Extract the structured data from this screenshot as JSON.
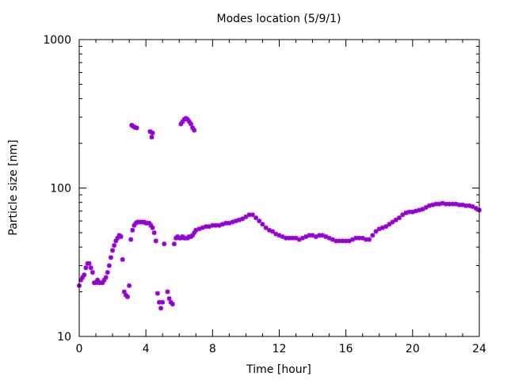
{
  "chart_data": {
    "type": "scatter",
    "title": "Modes location (5/9/1)",
    "xlabel": "Time [hour]",
    "ylabel": "Particle size [nm]",
    "x_scale": "linear",
    "y_scale": "log",
    "xlim": [
      0,
      24
    ],
    "ylim": [
      10,
      1000
    ],
    "x_ticks": [
      0,
      4,
      8,
      12,
      16,
      20,
      24
    ],
    "x_tick_labels": [
      "0",
      "4",
      "8",
      "12",
      "16",
      "20",
      "24"
    ],
    "y_ticks": [
      10,
      100,
      1000
    ],
    "y_tick_labels": [
      "10",
      "100",
      "1000"
    ],
    "grid": false,
    "legend": false,
    "marker_color": "#9400d3",
    "series": [
      {
        "points": [
          [
            0.0,
            22
          ],
          [
            0.1,
            24
          ],
          [
            0.2,
            25
          ],
          [
            0.3,
            26
          ],
          [
            0.4,
            29
          ],
          [
            0.5,
            31
          ],
          [
            0.6,
            31
          ],
          [
            0.7,
            29
          ],
          [
            0.8,
            27
          ],
          [
            0.9,
            23
          ],
          [
            1.0,
            23
          ],
          [
            1.1,
            24
          ],
          [
            1.2,
            23
          ],
          [
            1.3,
            23
          ],
          [
            1.4,
            23
          ],
          [
            1.5,
            24
          ],
          [
            1.6,
            25
          ],
          [
            1.7,
            27
          ],
          [
            1.8,
            30
          ],
          [
            1.9,
            34
          ],
          [
            2.0,
            38
          ],
          [
            2.1,
            41
          ],
          [
            2.2,
            44
          ],
          [
            2.3,
            46
          ],
          [
            2.4,
            48
          ],
          [
            2.5,
            47
          ],
          [
            2.6,
            33
          ],
          [
            2.7,
            20
          ],
          [
            2.8,
            19
          ],
          [
            2.9,
            18.5
          ],
          [
            3.0,
            22
          ],
          [
            3.1,
            45
          ],
          [
            3.2,
            52
          ],
          [
            3.3,
            56
          ],
          [
            3.4,
            58
          ],
          [
            3.5,
            59
          ],
          [
            3.6,
            59
          ],
          [
            3.7,
            59
          ],
          [
            3.8,
            59
          ],
          [
            3.9,
            59
          ],
          [
            4.0,
            58
          ],
          [
            4.1,
            58
          ],
          [
            4.2,
            58
          ],
          [
            4.3,
            56
          ],
          [
            4.4,
            54
          ],
          [
            4.5,
            50
          ],
          [
            4.6,
            44
          ],
          [
            4.7,
            19.5
          ],
          [
            4.8,
            17
          ],
          [
            4.9,
            15.5
          ],
          [
            5.0,
            17
          ],
          [
            5.1,
            42
          ],
          [
            5.3,
            20
          ],
          [
            5.4,
            18
          ],
          [
            5.5,
            17
          ],
          [
            5.6,
            16.5
          ],
          [
            5.7,
            42
          ],
          [
            5.8,
            46
          ],
          [
            5.9,
            47
          ],
          [
            6.0,
            46
          ],
          [
            6.1,
            46
          ],
          [
            6.2,
            47
          ],
          [
            6.3,
            46
          ],
          [
            6.4,
            46
          ],
          [
            6.5,
            46
          ],
          [
            6.6,
            47
          ],
          [
            6.7,
            47
          ],
          [
            6.8,
            48
          ],
          [
            6.9,
            50
          ],
          [
            7.0,
            52
          ],
          [
            7.2,
            53
          ],
          [
            7.4,
            54
          ],
          [
            7.6,
            55
          ],
          [
            7.8,
            55
          ],
          [
            8.0,
            56
          ],
          [
            8.2,
            56
          ],
          [
            8.4,
            56
          ],
          [
            8.6,
            57
          ],
          [
            8.8,
            58
          ],
          [
            9.0,
            58
          ],
          [
            9.2,
            59
          ],
          [
            9.4,
            60
          ],
          [
            9.6,
            61
          ],
          [
            9.8,
            62
          ],
          [
            10.0,
            64
          ],
          [
            10.2,
            66
          ],
          [
            10.4,
            66
          ],
          [
            10.6,
            63
          ],
          [
            10.8,
            60
          ],
          [
            11.0,
            57
          ],
          [
            11.2,
            54
          ],
          [
            11.4,
            52
          ],
          [
            11.6,
            51
          ],
          [
            11.8,
            49
          ],
          [
            12.0,
            48
          ],
          [
            12.2,
            47
          ],
          [
            12.4,
            46
          ],
          [
            12.6,
            46
          ],
          [
            12.8,
            46
          ],
          [
            13.0,
            46
          ],
          [
            13.2,
            45
          ],
          [
            13.4,
            46
          ],
          [
            13.6,
            47
          ],
          [
            13.8,
            48
          ],
          [
            14.0,
            48
          ],
          [
            14.2,
            47
          ],
          [
            14.4,
            48
          ],
          [
            14.6,
            48
          ],
          [
            14.8,
            47
          ],
          [
            15.0,
            46
          ],
          [
            15.2,
            45
          ],
          [
            15.4,
            44
          ],
          [
            15.6,
            44
          ],
          [
            15.8,
            44
          ],
          [
            16.0,
            44
          ],
          [
            16.2,
            44
          ],
          [
            16.4,
            45
          ],
          [
            16.6,
            46
          ],
          [
            16.8,
            46
          ],
          [
            17.0,
            46
          ],
          [
            17.2,
            45
          ],
          [
            17.4,
            45
          ],
          [
            17.6,
            48
          ],
          [
            17.8,
            51
          ],
          [
            18.0,
            53
          ],
          [
            18.2,
            54
          ],
          [
            18.4,
            55
          ],
          [
            18.6,
            57
          ],
          [
            18.8,
            59
          ],
          [
            19.0,
            61
          ],
          [
            19.2,
            63
          ],
          [
            19.4,
            66
          ],
          [
            19.6,
            68
          ],
          [
            19.8,
            69
          ],
          [
            20.0,
            69
          ],
          [
            20.2,
            70
          ],
          [
            20.4,
            71
          ],
          [
            20.6,
            72
          ],
          [
            20.8,
            74
          ],
          [
            21.0,
            76
          ],
          [
            21.2,
            77
          ],
          [
            21.4,
            78
          ],
          [
            21.6,
            78
          ],
          [
            21.8,
            79
          ],
          [
            22.0,
            78
          ],
          [
            22.2,
            78
          ],
          [
            22.4,
            78
          ],
          [
            22.6,
            78
          ],
          [
            22.8,
            77
          ],
          [
            23.0,
            77
          ],
          [
            23.2,
            76
          ],
          [
            23.4,
            76
          ],
          [
            23.6,
            75
          ],
          [
            23.8,
            73
          ],
          [
            24.0,
            71
          ],
          [
            3.15,
            265
          ],
          [
            3.25,
            260
          ],
          [
            3.35,
            256
          ],
          [
            3.45,
            254
          ],
          [
            4.25,
            240
          ],
          [
            4.35,
            220
          ],
          [
            4.4,
            235
          ],
          [
            6.1,
            270
          ],
          [
            6.2,
            280
          ],
          [
            6.3,
            290
          ],
          [
            6.4,
            295
          ],
          [
            6.5,
            290
          ],
          [
            6.6,
            280
          ],
          [
            6.7,
            270
          ],
          [
            6.8,
            255
          ],
          [
            6.9,
            245
          ]
        ]
      }
    ]
  }
}
